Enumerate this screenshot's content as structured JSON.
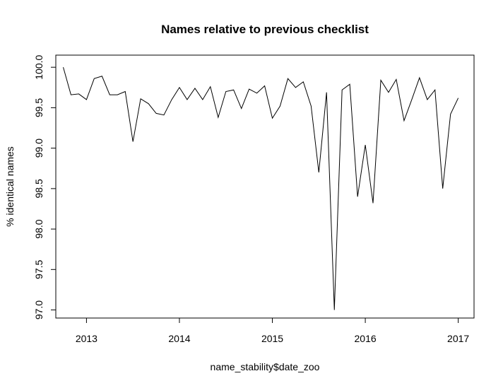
{
  "chart_data": {
    "type": "line",
    "title": "Names relative to previous checklist",
    "xlabel": "name_stability$date_zoo",
    "ylabel": "% identical names",
    "xlim": [
      2012.67,
      2017.17
    ],
    "ylim": [
      96.9,
      100.15
    ],
    "x_ticks": [
      2013,
      2014,
      2015,
      2016,
      2017
    ],
    "x_tick_labels": [
      "2013",
      "2014",
      "2015",
      "2016",
      "2017"
    ],
    "y_ticks": [
      97.0,
      97.5,
      98.0,
      98.5,
      99.0,
      99.5,
      100.0
    ],
    "y_tick_labels": [
      "97.0",
      "97.5",
      "98.0",
      "98.5",
      "99.0",
      "99.5",
      "100.0"
    ],
    "grid": false,
    "color": "#000000",
    "x": [
      2012.75,
      2012.833,
      2012.917,
      2013.0,
      2013.083,
      2013.167,
      2013.25,
      2013.333,
      2013.417,
      2013.5,
      2013.583,
      2013.667,
      2013.75,
      2013.833,
      2013.917,
      2014.0,
      2014.083,
      2014.167,
      2014.25,
      2014.333,
      2014.417,
      2014.5,
      2014.583,
      2014.667,
      2014.75,
      2014.833,
      2014.917,
      2015.0,
      2015.083,
      2015.167,
      2015.25,
      2015.333,
      2015.417,
      2015.5,
      2015.583,
      2015.667,
      2015.75,
      2015.833,
      2015.917,
      2016.0,
      2016.083,
      2016.167,
      2016.25,
      2016.333,
      2016.417,
      2016.5,
      2016.583,
      2016.667,
      2016.75,
      2016.833,
      2016.917,
      2017.0
    ],
    "y": [
      100.0,
      99.66,
      99.67,
      99.6,
      99.86,
      99.89,
      99.66,
      99.66,
      99.7,
      99.08,
      99.61,
      99.55,
      99.43,
      99.41,
      99.6,
      99.75,
      99.6,
      99.74,
      99.6,
      99.76,
      99.38,
      99.7,
      99.72,
      99.49,
      99.73,
      99.68,
      99.77,
      99.37,
      99.52,
      99.86,
      99.75,
      99.82,
      99.52,
      98.7,
      99.69,
      97.0,
      99.72,
      99.79,
      98.4,
      99.04,
      98.32,
      99.84,
      99.69,
      99.85,
      99.34,
      99.6,
      99.87,
      99.6,
      99.72,
      98.5,
      99.42,
      99.62
    ]
  }
}
